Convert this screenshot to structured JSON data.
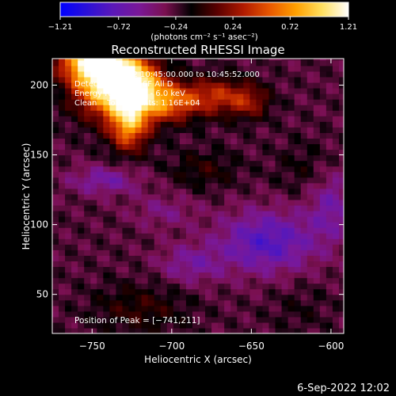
{
  "chart_data": {
    "type": "heatmap",
    "title": "Reconstructed RHESSI Image",
    "xlabel": "Heliocentric X (arcsec)",
    "ylabel": "Heliocentric Y (arcsec)",
    "xlim": [
      -775,
      -592
    ],
    "ylim": [
      22,
      219
    ],
    "x_ticks": [
      -750,
      -700,
      -650,
      -600
    ],
    "x_tick_labels": [
      "−750",
      "−700",
      "−650",
      "−600"
    ],
    "y_ticks": [
      50,
      100,
      150,
      200
    ],
    "y_tick_labels": [
      "50",
      "100",
      "150",
      "200"
    ],
    "colorbar": {
      "min": -1.21,
      "max": 1.21,
      "ticks": [
        -1.21,
        -0.72,
        -0.24,
        0.24,
        0.72,
        1.21
      ],
      "tick_labels": [
        "−1.21",
        "−0.72",
        "−0.24",
        "0.24",
        "0.72",
        "1.21"
      ],
      "units_label": "(photons cm⁻² s⁻¹ asec⁻²)",
      "stops": [
        "#0000ff",
        "#2a10d8",
        "#5a18b8",
        "#7a1898",
        "#7a1050",
        "#000000",
        "#5a0000",
        "#b01a00",
        "#e85800",
        "#ffa000",
        "#ffe060",
        "#ffffff"
      ]
    },
    "annotations": [
      "1-Sep-2022 10:45:00.000 to 10:45:52.000",
      "Detectors: 3F 5F 6F  All D",
      "Energy Range: 3.0 - 6.0 keV",
      "Clean    Total Counts: 1.16E+04"
    ],
    "peak_label": "Position of Peak = [−741,211]",
    "peak": {
      "x": -741,
      "y": 211
    }
  },
  "footer": {
    "timestamp": "6-Sep-2022 12:02"
  }
}
